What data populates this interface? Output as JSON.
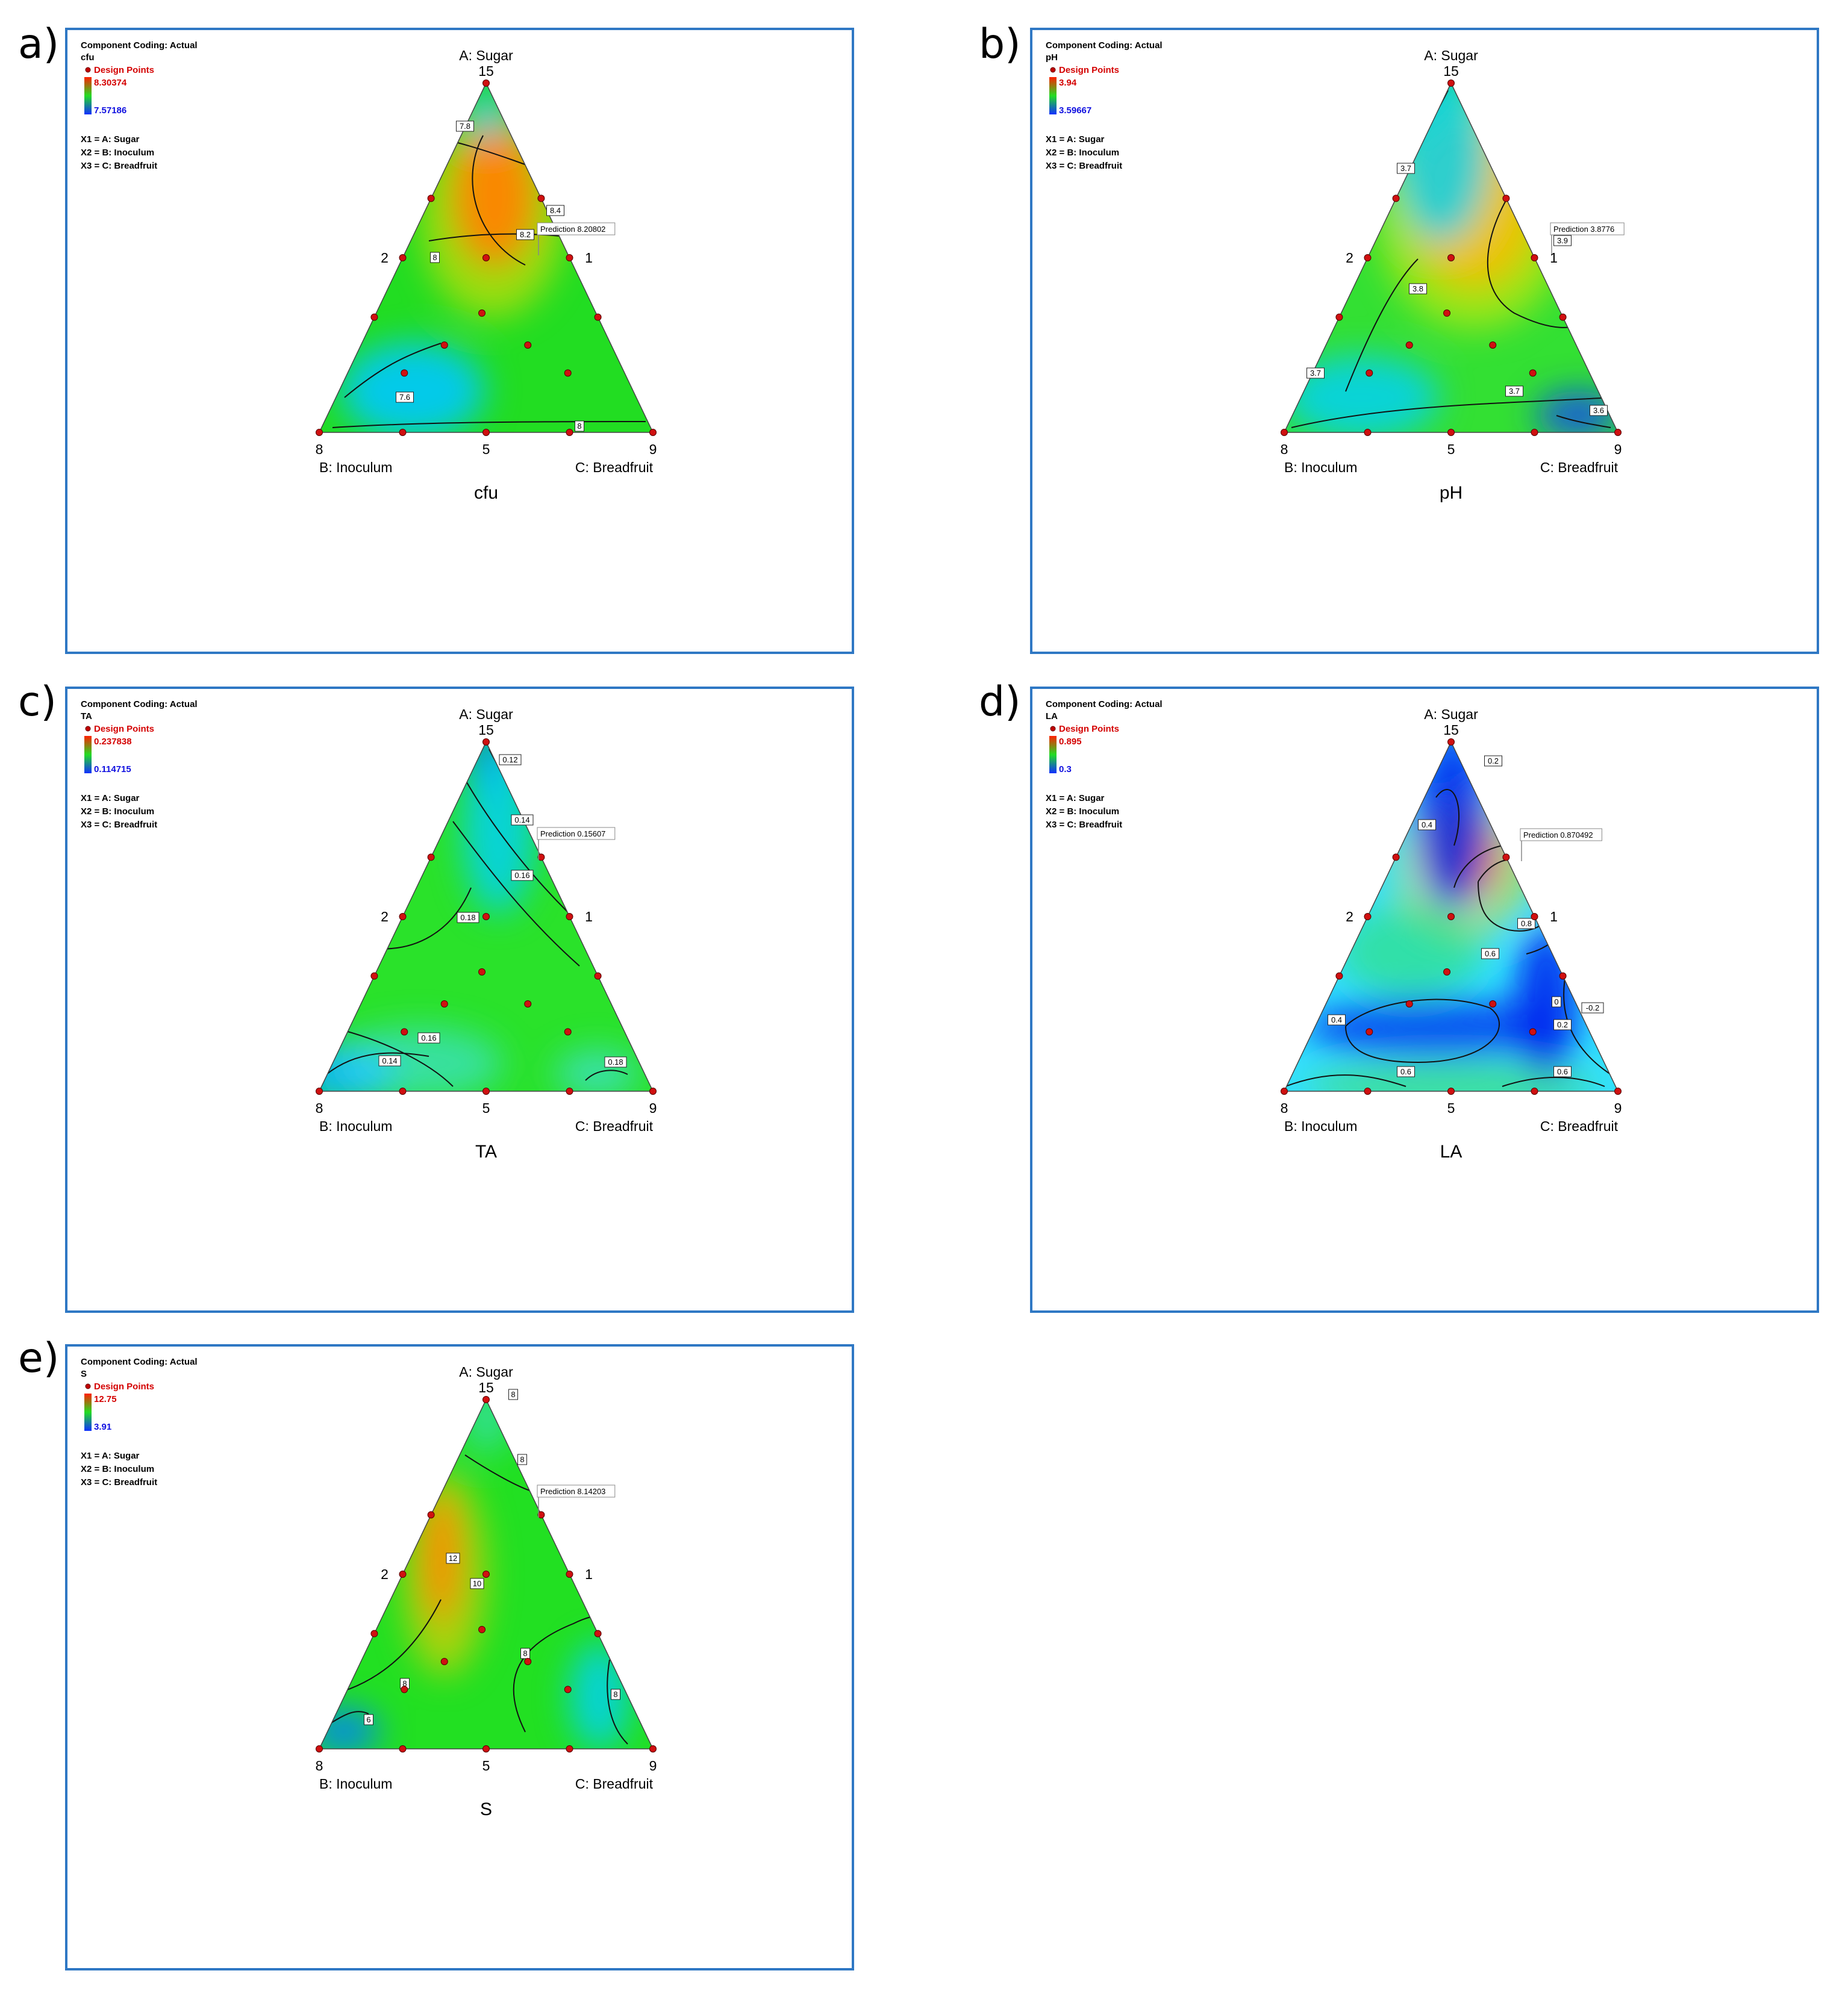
{
  "figure": {
    "panels": [
      {
        "id": "a",
        "label": "a)",
        "coding": "Component Coding: Actual",
        "response": "cfu",
        "legend_points": "Design Points",
        "high": "8.30374",
        "low": "7.57186",
        "x1": "X1 = A: Sugar",
        "x2": "X2 = B: Inoculum",
        "x3": "X3 = C: Breadfruit",
        "apex": "A: Sugar",
        "apex_val": "15",
        "left_val": "8",
        "mid_val": "5",
        "right_val": "9",
        "left_name": "B: Inoculum",
        "right_name": "C: Breadfruit",
        "mid_left": "2",
        "mid_right": "1",
        "title": "cfu",
        "prediction": "Prediction 8.20802",
        "contour_labels": [
          "7.8",
          "8.4",
          "8.2",
          "8",
          "7.6",
          "8"
        ]
      },
      {
        "id": "b",
        "label": "b)",
        "coding": "Component Coding: Actual",
        "response": "pH",
        "legend_points": "Design Points",
        "high": "3.94",
        "low": "3.59667",
        "x1": "X1 = A: Sugar",
        "x2": "X2 = B: Inoculum",
        "x3": "X3 = C: Breadfruit",
        "apex": "A: Sugar",
        "apex_val": "15",
        "left_val": "8",
        "mid_val": "5",
        "right_val": "9",
        "left_name": "B: Inoculum",
        "right_name": "C: Breadfruit",
        "mid_left": "2",
        "mid_right": "1",
        "title": "pH",
        "prediction": "Prediction 3.8776",
        "contour_labels": [
          "3.7",
          "3.9",
          "3.8",
          "3.7",
          "3.7",
          "3.6"
        ]
      },
      {
        "id": "c",
        "label": "c)",
        "coding": "Component Coding: Actual",
        "response": "TA",
        "legend_points": "Design Points",
        "high": "0.237838",
        "low": "0.114715",
        "x1": "X1 = A: Sugar",
        "x2": "X2 = B: Inoculum",
        "x3": "X3 = C: Breadfruit",
        "apex": "A: Sugar",
        "apex_val": "15",
        "left_val": "8",
        "mid_val": "5",
        "right_val": "9",
        "left_name": "B: Inoculum",
        "right_name": "C: Breadfruit",
        "mid_left": "2",
        "mid_right": "1",
        "title": "TA",
        "prediction": "Prediction 0.15607",
        "contour_labels": [
          "0.12",
          "0.14",
          "0.16",
          "0.18",
          "0.14",
          "0.16",
          "0.18"
        ]
      },
      {
        "id": "d",
        "label": "d)",
        "coding": "Component Coding: Actual",
        "response": "LA",
        "legend_points": "Design Points",
        "high": "0.895",
        "low": "0.3",
        "x1": "X1 = A: Sugar",
        "x2": "X2 = B: Inoculum",
        "x3": "X3 = C: Breadfruit",
        "apex": "A: Sugar",
        "apex_val": "15",
        "left_val": "8",
        "mid_val": "5",
        "right_val": "9",
        "left_name": "B: Inoculum",
        "right_name": "C: Breadfruit",
        "mid_left": "2",
        "mid_right": "1",
        "title": "LA",
        "prediction": "Prediction 0.870492",
        "contour_labels": [
          "0.2",
          "0.4",
          "0.8",
          "0.6",
          "0.4",
          "0.2",
          "0",
          "-0.2",
          "0.6",
          "0.6"
        ]
      },
      {
        "id": "e",
        "label": "e)",
        "coding": "Component Coding: Actual",
        "response": "S",
        "legend_points": "Design Points",
        "high": "12.75",
        "low": "3.91",
        "x1": "X1 = A: Sugar",
        "x2": "X2 = B: Inoculum",
        "x3": "X3 = C: Breadfruit",
        "apex": "A: Sugar",
        "apex_val": "15",
        "left_val": "8",
        "mid_val": "5",
        "right_val": "9",
        "left_name": "B: Inoculum",
        "right_name": "C: Breadfruit",
        "mid_left": "2",
        "mid_right": "1",
        "title": "S",
        "prediction": "Prediction 8.14203",
        "contour_labels": [
          "8",
          "8",
          "12",
          "10",
          "8",
          "8",
          "6",
          "8"
        ]
      }
    ]
  },
  "chart_data": [
    {
      "type": "heatmap",
      "title": "cfu",
      "subtype": "ternary contour",
      "components": [
        "A: Sugar",
        "B: Inoculum",
        "C: Breadfruit"
      ],
      "range": {
        "low": 7.57186,
        "high": 8.30374
      },
      "prediction": 8.20802,
      "contour_levels": [
        7.6,
        7.8,
        8,
        8.2,
        8.4
      ]
    },
    {
      "type": "heatmap",
      "title": "pH",
      "subtype": "ternary contour",
      "components": [
        "A: Sugar",
        "B: Inoculum",
        "C: Breadfruit"
      ],
      "range": {
        "low": 3.59667,
        "high": 3.94
      },
      "prediction": 3.8776,
      "contour_levels": [
        3.6,
        3.7,
        3.8,
        3.9
      ]
    },
    {
      "type": "heatmap",
      "title": "TA",
      "subtype": "ternary contour",
      "components": [
        "A: Sugar",
        "B: Inoculum",
        "C: Breadfruit"
      ],
      "range": {
        "low": 0.114715,
        "high": 0.237838
      },
      "prediction": 0.15607,
      "contour_levels": [
        0.12,
        0.14,
        0.16,
        0.18
      ]
    },
    {
      "type": "heatmap",
      "title": "LA",
      "subtype": "ternary contour",
      "components": [
        "A: Sugar",
        "B: Inoculum",
        "C: Breadfruit"
      ],
      "range": {
        "low": 0.3,
        "high": 0.895
      },
      "prediction": 0.870492,
      "contour_levels": [
        -0.2,
        0,
        0.2,
        0.4,
        0.6,
        0.8
      ]
    },
    {
      "type": "heatmap",
      "title": "S",
      "subtype": "ternary contour",
      "components": [
        "A: Sugar",
        "B: Inoculum",
        "C: Breadfruit"
      ],
      "range": {
        "low": 3.91,
        "high": 12.75
      },
      "prediction": 8.14203,
      "contour_levels": [
        6,
        8,
        10,
        12
      ]
    }
  ]
}
